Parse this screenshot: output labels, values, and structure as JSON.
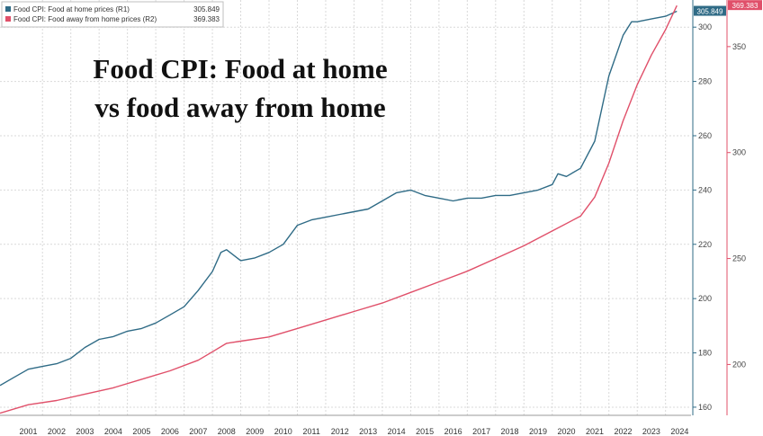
{
  "chart_data": {
    "type": "line",
    "title": [
      "Food CPI: Food at home",
      "vs food away from home"
    ],
    "legend": [
      {
        "label": "Food CPI: Food at home prices (R1)",
        "value": "305.849",
        "color": "#2f6b86"
      },
      {
        "label": "Food CPI: Food away from home prices (R2)",
        "value": "369.383",
        "color": "#e0506a"
      }
    ],
    "legend_placement": "top-left",
    "x_tick_labels": [
      "2001",
      "2002",
      "2003",
      "2004",
      "2005",
      "2006",
      "2007",
      "2008",
      "2009",
      "2010",
      "2011",
      "2012",
      "2013",
      "2014",
      "2015",
      "2016",
      "2017",
      "2018",
      "2019",
      "2020",
      "2021",
      "2022",
      "2023",
      "2024"
    ],
    "xlim": [
      2000.5,
      2024.9
    ],
    "axes": {
      "r1": {
        "ticks": [
          160,
          180,
          200,
          220,
          240,
          260,
          280,
          300
        ],
        "tick_labels": [
          "160",
          "180",
          "200",
          "220",
          "240",
          "260",
          "280",
          "300"
        ],
        "range": [
          157,
          310
        ]
      },
      "r2": {
        "ticks": [
          200,
          250,
          300,
          350
        ],
        "tick_labels": [
          "200",
          "250",
          "300",
          "350"
        ],
        "range": [
          176,
          372
        ]
      }
    },
    "grid": true,
    "series": [
      {
        "name": "Food CPI: Food at home prices (R1)",
        "axis": "r1",
        "color": "#2f6b86",
        "last_value": "305.849",
        "x": [
          2000.5,
          2001.0,
          2001.5,
          2002.0,
          2002.5,
          2003.0,
          2003.5,
          2004.0,
          2004.5,
          2005.0,
          2005.5,
          2006.0,
          2006.5,
          2007.0,
          2007.5,
          2008.0,
          2008.3,
          2008.5,
          2009.0,
          2009.5,
          2010.0,
          2010.5,
          2011.0,
          2011.5,
          2012.0,
          2012.5,
          2013.0,
          2013.5,
          2014.0,
          2014.5,
          2015.0,
          2015.5,
          2016.0,
          2016.5,
          2017.0,
          2017.5,
          2018.0,
          2018.5,
          2019.0,
          2019.5,
          2020.0,
          2020.2,
          2020.5,
          2021.0,
          2021.5,
          2022.0,
          2022.5,
          2022.8,
          2023.0,
          2023.5,
          2024.0,
          2024.4
        ],
        "y": [
          168,
          171,
          174,
          175,
          176,
          178,
          182,
          185,
          186,
          188,
          189,
          191,
          194,
          197,
          203,
          210,
          217,
          218,
          214,
          215,
          217,
          220,
          227,
          229,
          230,
          231,
          232,
          233,
          236,
          239,
          240,
          238,
          237,
          236,
          237,
          237,
          238,
          238,
          239,
          240,
          242,
          246,
          245,
          248,
          258,
          282,
          297,
          302,
          302,
          303,
          304,
          305.849
        ]
      },
      {
        "name": "Food CPI: Food away from home prices (R2)",
        "axis": "r2",
        "color": "#e0506a",
        "last_value": "369.383",
        "x": [
          2000.5,
          2001.5,
          2002.5,
          2003.5,
          2004.5,
          2005.5,
          2006.5,
          2007.5,
          2008.0,
          2008.5,
          2009.0,
          2010.0,
          2011.0,
          2012.0,
          2013.0,
          2014.0,
          2015.0,
          2016.0,
          2017.0,
          2018.0,
          2019.0,
          2020.0,
          2021.0,
          2021.5,
          2022.0,
          2022.5,
          2023.0,
          2023.5,
          2024.0,
          2024.4
        ],
        "y": [
          177,
          181,
          183,
          186,
          189,
          193,
          197,
          202,
          206,
          210,
          211,
          213,
          217,
          221,
          225,
          229,
          234,
          239,
          244,
          250,
          256,
          263,
          270,
          279,
          295,
          315,
          332,
          346,
          358,
          369.383
        ]
      }
    ]
  }
}
